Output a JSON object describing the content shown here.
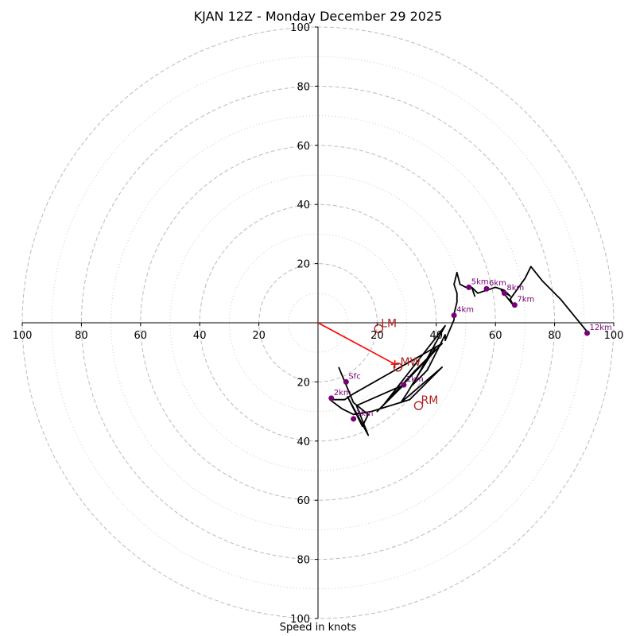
{
  "chart_data": {
    "type": "hodograph",
    "title": "KJAN 12Z - Monday December 29 2025",
    "xlabel": "Speed in knots",
    "range": [
      -100,
      100
    ],
    "ring_major": [
      20,
      40,
      60,
      80,
      100
    ],
    "ring_minor": [
      10,
      30,
      50,
      70,
      90
    ],
    "tick_labels": {
      "x": [
        {
          "v": -100,
          "t": "100"
        },
        {
          "v": -80,
          "t": "80"
        },
        {
          "v": -60,
          "t": "60"
        },
        {
          "v": -40,
          "t": "40"
        },
        {
          "v": -20,
          "t": "20"
        },
        {
          "v": 20,
          "t": "20"
        },
        {
          "v": 40,
          "t": "40"
        },
        {
          "v": 60,
          "t": "60"
        },
        {
          "v": 80,
          "t": "80"
        },
        {
          "v": 100,
          "t": "100"
        }
      ],
      "y": [
        {
          "v": 100,
          "t": "100"
        },
        {
          "v": 80,
          "t": "80"
        },
        {
          "v": 60,
          "t": "60"
        },
        {
          "v": 40,
          "t": "40"
        },
        {
          "v": 20,
          "t": "20"
        },
        {
          "v": -20,
          "t": "20"
        },
        {
          "v": -40,
          "t": "40"
        },
        {
          "v": -60,
          "t": "60"
        },
        {
          "v": -80,
          "t": "80"
        },
        {
          "v": -100,
          "t": "100"
        }
      ]
    },
    "wind_trace": [
      [
        7,
        -15
      ],
      [
        12,
        -27
      ],
      [
        17,
        -31
      ],
      [
        15,
        -35
      ],
      [
        12,
        -29
      ],
      [
        10,
        -25
      ],
      [
        17,
        -38
      ],
      [
        13,
        -28
      ],
      [
        29,
        -21
      ],
      [
        20,
        -30
      ],
      [
        42,
        -7
      ],
      [
        12,
        -24
      ],
      [
        9,
        -26
      ],
      [
        4,
        -26
      ],
      [
        8,
        -29
      ],
      [
        12,
        -31
      ],
      [
        18,
        -30
      ],
      [
        31,
        -26
      ],
      [
        42,
        -15
      ],
      [
        28,
        -27
      ],
      [
        30,
        -24
      ],
      [
        33,
        -19
      ],
      [
        40,
        -8
      ],
      [
        38,
        -11
      ],
      [
        33,
        -16
      ],
      [
        22,
        -28
      ],
      [
        43,
        -1
      ],
      [
        32,
        -21
      ],
      [
        37,
        -16
      ],
      [
        43,
        -4
      ],
      [
        43,
        -6
      ],
      [
        46,
        1
      ],
      [
        46,
        3
      ],
      [
        47,
        7
      ],
      [
        47,
        10
      ],
      [
        46,
        13
      ],
      [
        47,
        17
      ],
      [
        48,
        13
      ],
      [
        50,
        12
      ],
      [
        52,
        12
      ],
      [
        53,
        9
      ],
      [
        52,
        12
      ],
      [
        54,
        10
      ],
      [
        57,
        11
      ],
      [
        60,
        12
      ],
      [
        63,
        11
      ],
      [
        65,
        9
      ],
      [
        62,
        11
      ],
      [
        66,
        6
      ],
      [
        65,
        8
      ],
      [
        70,
        15
      ],
      [
        72,
        19
      ],
      [
        76,
        14
      ],
      [
        82,
        8
      ],
      [
        91,
        -3
      ]
    ],
    "height_markers": [
      {
        "label": "Sfc",
        "u": 9.5,
        "v": -20
      },
      {
        "label": "1km",
        "u": 29,
        "v": -21
      },
      {
        "label": "2km",
        "u": 4.5,
        "v": -25.5
      },
      {
        "label": "3km",
        "u": 12,
        "v": -32.5
      },
      {
        "label": "4km",
        "u": 46,
        "v": 2.5
      },
      {
        "label": "5km",
        "u": 51,
        "v": 12
      },
      {
        "label": "6km",
        "u": 57,
        "v": 11.5
      },
      {
        "label": "8km",
        "u": 63,
        "v": 10
      },
      {
        "label": "7km",
        "u": 66.5,
        "v": 6
      },
      {
        "label": "12km",
        "u": 91,
        "v": -3.5
      }
    ],
    "motion_markers": [
      {
        "label": "LM",
        "u": 20.5,
        "v": -2
      },
      {
        "label": "MW",
        "u": 27,
        "v": -15
      },
      {
        "label": "RM",
        "u": 34,
        "v": -28
      }
    ],
    "mean_wind_vector": {
      "u": 26,
      "v": -14
    },
    "colors": {
      "trace": "#000000",
      "height_marker": "#7a007a",
      "motion": "#b22222",
      "vector": "#ff0000",
      "grid": "#bbbbbb",
      "axis": "#000000"
    }
  }
}
